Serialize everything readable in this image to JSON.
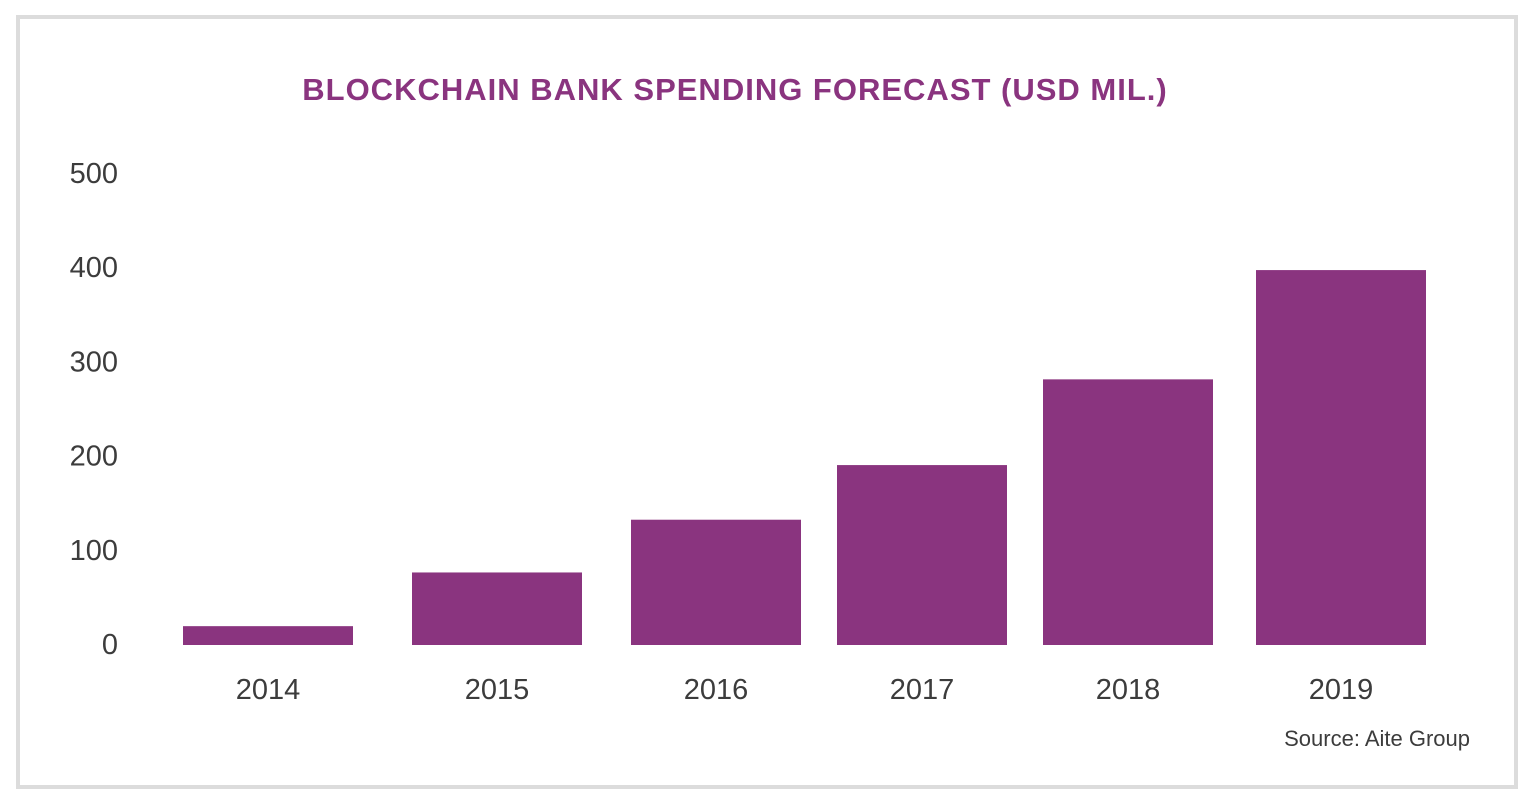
{
  "colors": {
    "bar": "#8a347f",
    "title": "#8a347f",
    "axis_text": "#3c3c3c",
    "frame": "#dcdcdc"
  },
  "source": "Source: Aite Group",
  "chart_data": {
    "type": "bar",
    "title": "BLOCKCHAIN BANK SPENDING FORECAST (USD MIL.)",
    "xlabel": "",
    "ylabel": "",
    "categories": [
      "2014",
      "2015",
      "2016",
      "2017",
      "2018",
      "2019"
    ],
    "values": [
      20,
      77,
      133,
      191,
      282,
      398
    ],
    "ylim": [
      0,
      500
    ],
    "yticks": [
      "0",
      "100",
      "200",
      "300",
      "400",
      "500"
    ],
    "grid": false,
    "legend": "none"
  }
}
